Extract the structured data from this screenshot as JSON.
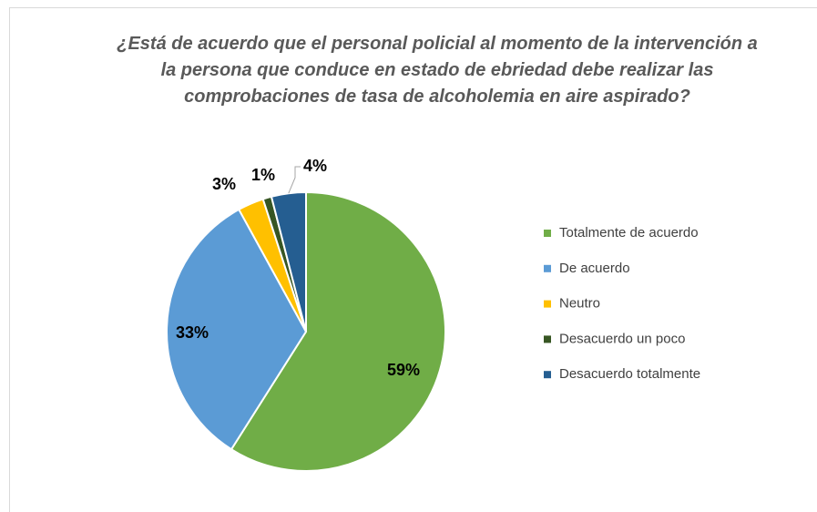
{
  "chart_data": {
    "type": "pie",
    "title": "¿Está de acuerdo que el personal policial al momento de la intervención a la persona que conduce en estado de ebriedad debe realizar las comprobaciones de tasa de alcoholemia en aire aspirado?",
    "categories": [
      "Totalmente de acuerdo",
      "De acuerdo",
      "Neutro",
      "Desacuerdo un poco",
      "Desacuerdo totalmente"
    ],
    "values": [
      59,
      33,
      3,
      1,
      4
    ],
    "value_labels": [
      "59%",
      "33%",
      "3%",
      "1%",
      "4%"
    ],
    "colors": [
      "#70ad47",
      "#5b9bd5",
      "#ffc000",
      "#375623",
      "#255e91"
    ],
    "legend": "right"
  }
}
